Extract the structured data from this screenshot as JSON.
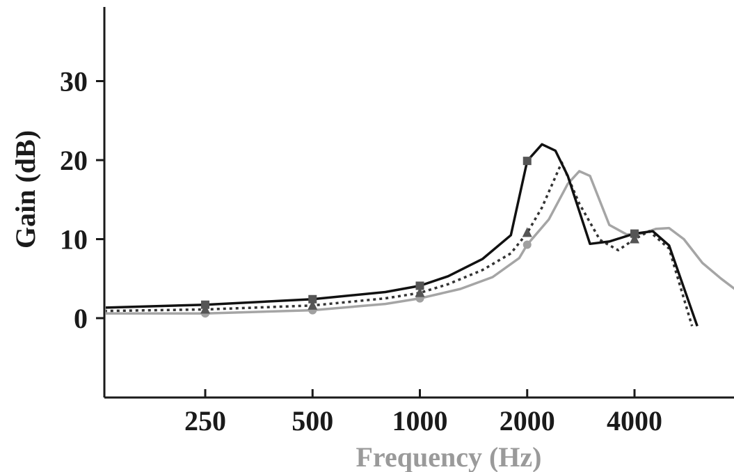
{
  "chart_data": {
    "type": "line",
    "xlabel": "Frequency (Hz)",
    "ylabel": "Gain (dB)",
    "x_scale": "log2",
    "xlim": [
      125,
      8000
    ],
    "ylim": [
      -10,
      39
    ],
    "x_ticks": [
      250,
      500,
      1000,
      2000,
      4000
    ],
    "x_tick_labels": [
      "250",
      "500",
      "1000",
      "2000",
      "4000"
    ],
    "y_ticks": [
      0,
      10,
      20,
      30
    ],
    "y_tick_labels": [
      "0",
      "10",
      "20",
      "30"
    ],
    "grid": false,
    "legend": "none",
    "series": [
      {
        "style": "solid",
        "color": "#111111",
        "marker": "square",
        "x": [
          125,
          250,
          500,
          800,
          1000,
          1200,
          1500,
          1800,
          2000,
          2200,
          2400,
          2600,
          3000,
          3400,
          4000,
          4500,
          5000,
          6000
        ],
        "y": [
          1.3,
          1.7,
          2.4,
          3.3,
          4.1,
          5.3,
          7.5,
          10.5,
          19.9,
          22.0,
          21.2,
          18.0,
          9.4,
          9.7,
          10.7,
          11.0,
          9.2,
          -1.0
        ],
        "marker_x": [
          250,
          500,
          1000,
          2000,
          4000
        ],
        "marker_y": [
          1.7,
          2.4,
          4.1,
          19.9,
          10.7
        ]
      },
      {
        "style": "dotted",
        "color": "#333333",
        "marker": "triangle",
        "x": [
          125,
          250,
          500,
          800,
          1000,
          1200,
          1500,
          1800,
          2000,
          2200,
          2500,
          2800,
          3200,
          3600,
          4000,
          4400,
          5000,
          5800
        ],
        "y": [
          0.9,
          1.1,
          1.6,
          2.5,
          3.2,
          4.3,
          6.1,
          8.2,
          10.8,
          14.0,
          19.7,
          14.5,
          9.9,
          8.6,
          10.0,
          11.0,
          8.8,
          -1.0
        ],
        "marker_x": [
          250,
          500,
          1000,
          2000,
          4000
        ],
        "marker_y": [
          1.1,
          1.6,
          3.2,
          10.8,
          10.0
        ]
      },
      {
        "style": "solid",
        "color": "#a5a5a5",
        "marker": "circle",
        "x": [
          125,
          250,
          500,
          800,
          1000,
          1300,
          1600,
          1900,
          2000,
          2300,
          2600,
          2800,
          3000,
          3400,
          3800,
          4200,
          4600,
          5000,
          5500,
          6200,
          7000,
          8000
        ],
        "y": [
          0.6,
          0.6,
          1.0,
          1.8,
          2.5,
          3.7,
          5.2,
          7.6,
          9.3,
          12.5,
          17.0,
          18.6,
          18.0,
          11.8,
          10.6,
          10.7,
          11.3,
          11.4,
          10.0,
          7.0,
          5.0,
          3.0
        ],
        "marker_x": [
          250,
          500,
          1000,
          2000,
          4000
        ],
        "marker_y": [
          0.6,
          1.0,
          2.5,
          9.3,
          10.5
        ]
      }
    ]
  }
}
